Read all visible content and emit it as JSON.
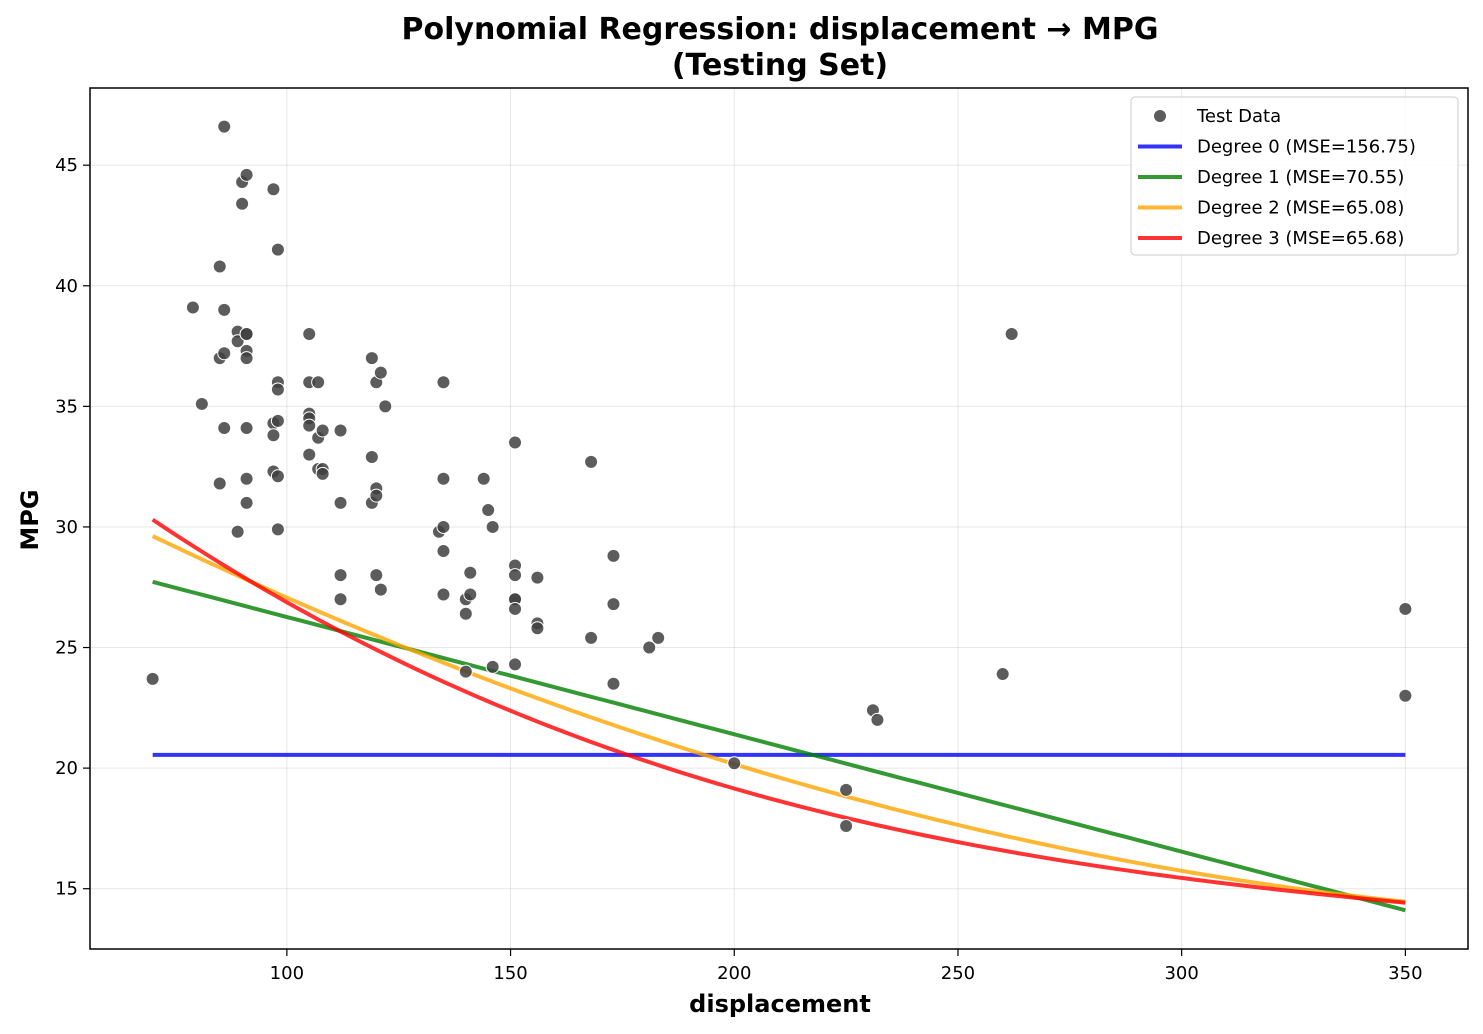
{
  "chart_data": {
    "type": "scatter",
    "title": "Polynomial Regression: displacement → MPG",
    "subtitle": "(Testing Set)",
    "xlabel": "displacement",
    "ylabel": "MPG",
    "xlim": [
      56,
      364
    ],
    "ylim": [
      12.5,
      48.2
    ],
    "xticks": [
      100,
      150,
      200,
      250,
      300,
      350
    ],
    "yticks": [
      15,
      20,
      25,
      30,
      35,
      40,
      45
    ],
    "grid": true,
    "legend_position": "top-right",
    "scatter": {
      "name": "Test Data",
      "color": "#404040",
      "points": [
        [
          70,
          23.7
        ],
        [
          79,
          39.1
        ],
        [
          81,
          35.1
        ],
        [
          85,
          40.8
        ],
        [
          85,
          37.0
        ],
        [
          85,
          31.8
        ],
        [
          86,
          46.6
        ],
        [
          86,
          39.0
        ],
        [
          86,
          37.2
        ],
        [
          86,
          34.1
        ],
        [
          89,
          38.1
        ],
        [
          89,
          37.7
        ],
        [
          89,
          29.8
        ],
        [
          90,
          44.3
        ],
        [
          90,
          43.4
        ],
        [
          91,
          44.6
        ],
        [
          91,
          38.0
        ],
        [
          91,
          38.0
        ],
        [
          91,
          37.3
        ],
        [
          91,
          37.0
        ],
        [
          91,
          34.1
        ],
        [
          91,
          32.0
        ],
        [
          91,
          31.0
        ],
        [
          97,
          44.0
        ],
        [
          97,
          34.3
        ],
        [
          97,
          33.8
        ],
        [
          97,
          32.3
        ],
        [
          98,
          41.5
        ],
        [
          98,
          36.0
        ],
        [
          98,
          35.7
        ],
        [
          98,
          34.4
        ],
        [
          98,
          32.1
        ],
        [
          98,
          29.9
        ],
        [
          105,
          38.0
        ],
        [
          105,
          36.0
        ],
        [
          105,
          34.7
        ],
        [
          105,
          34.5
        ],
        [
          105,
          34.2
        ],
        [
          105,
          33.0
        ],
        [
          107,
          36.0
        ],
        [
          107,
          33.7
        ],
        [
          107,
          32.4
        ],
        [
          108,
          34.0
        ],
        [
          108,
          32.4
        ],
        [
          108,
          32.2
        ],
        [
          112,
          34.0
        ],
        [
          112,
          31.0
        ],
        [
          112,
          28.0
        ],
        [
          112,
          27.0
        ],
        [
          119,
          37.0
        ],
        [
          119,
          32.9
        ],
        [
          119,
          31.0
        ],
        [
          120,
          36.0
        ],
        [
          120,
          31.6
        ],
        [
          120,
          31.3
        ],
        [
          120,
          28.0
        ],
        [
          121,
          36.4
        ],
        [
          121,
          27.4
        ],
        [
          122,
          35.0
        ],
        [
          134,
          29.8
        ],
        [
          135,
          36.0
        ],
        [
          135,
          32.0
        ],
        [
          135,
          30.0
        ],
        [
          135,
          29.0
        ],
        [
          135,
          27.2
        ],
        [
          140,
          27.0
        ],
        [
          140,
          26.4
        ],
        [
          140,
          24.0
        ],
        [
          141,
          28.1
        ],
        [
          141,
          27.2
        ],
        [
          144,
          32.0
        ],
        [
          145,
          30.7
        ],
        [
          146,
          30.0
        ],
        [
          146,
          24.2
        ],
        [
          151,
          33.5
        ],
        [
          151,
          28.4
        ],
        [
          151,
          28.0
        ],
        [
          151,
          27.0
        ],
        [
          151,
          27.0
        ],
        [
          151,
          26.6
        ],
        [
          151,
          24.3
        ],
        [
          156,
          27.9
        ],
        [
          156,
          26.0
        ],
        [
          156,
          25.8
        ],
        [
          168,
          32.7
        ],
        [
          168,
          25.4
        ],
        [
          173,
          28.8
        ],
        [
          173,
          26.8
        ],
        [
          173,
          23.5
        ],
        [
          181,
          25.0
        ],
        [
          183,
          25.4
        ],
        [
          200,
          20.2
        ],
        [
          225,
          19.1
        ],
        [
          225,
          17.6
        ],
        [
          231,
          22.4
        ],
        [
          232,
          22.0
        ],
        [
          260,
          23.9
        ],
        [
          262,
          38.0
        ],
        [
          350,
          26.6
        ],
        [
          350,
          23.0
        ]
      ]
    },
    "series": [
      {
        "name": "Degree 0 (MSE=156.75)",
        "color": "#0000ff",
        "degree": 0,
        "coefficients": [
          20.55
        ]
      },
      {
        "name": "Degree 1 (MSE=70.55)",
        "color": "#008000",
        "degree": 1,
        "coefficients": [
          31.13,
          -0.04864
        ]
      },
      {
        "name": "Degree 2 (MSE=65.08)",
        "color": "#ffa500",
        "degree": 2,
        "coefficients": [
          36.45,
          -0.1062,
          0.0001239
        ]
      },
      {
        "name": "Degree 3 (MSE=65.68)",
        "color": "#ff0000",
        "degree": 3,
        "coefficients": [
          40.79,
          -0.1773,
          0.000418,
          -3.62e-07
        ]
      }
    ],
    "fit_x_range": [
      70,
      350
    ]
  }
}
